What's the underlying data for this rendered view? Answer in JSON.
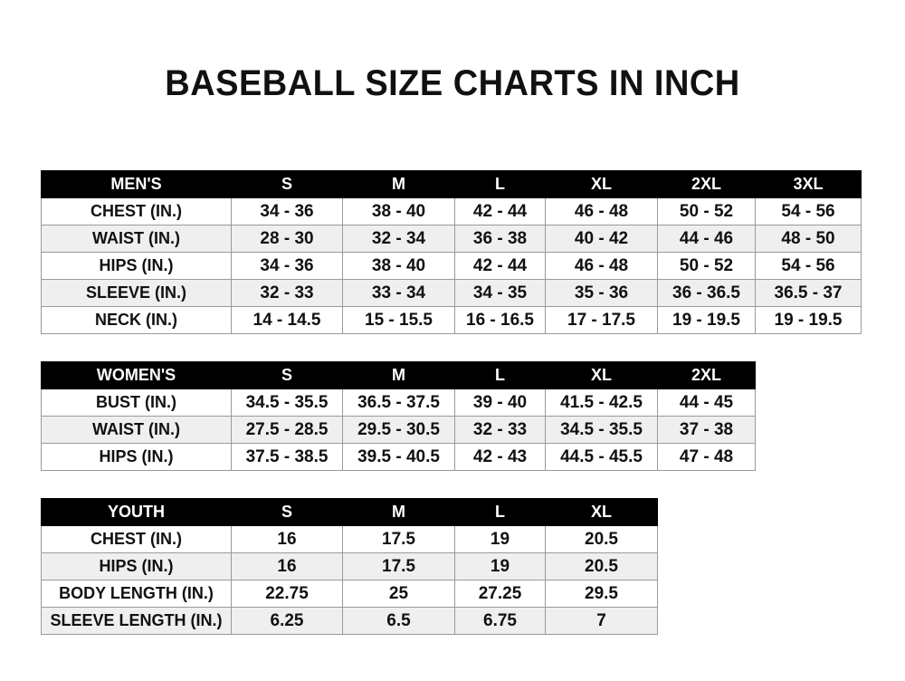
{
  "title": "BASEBALL SIZE CHARTS IN INCH",
  "tables": [
    {
      "headers": [
        "MEN'S",
        "S",
        "M",
        "L",
        "XL",
        "2XL",
        "3XL"
      ],
      "rows": [
        [
          "CHEST (IN.)",
          "34 - 36",
          "38 - 40",
          "42 - 44",
          "46 - 48",
          "50 - 52",
          "54 - 56"
        ],
        [
          "WAIST (IN.)",
          "28 - 30",
          "32 - 34",
          "36 - 38",
          "40 - 42",
          "44 - 46",
          "48 - 50"
        ],
        [
          "HIPS (IN.)",
          "34 - 36",
          "38 - 40",
          "42 - 44",
          "46 - 48",
          "50 - 52",
          "54 - 56"
        ],
        [
          "SLEEVE (IN.)",
          "32 - 33",
          "33 - 34",
          "34 - 35",
          "35 - 36",
          "36 - 36.5",
          "36.5 - 37"
        ],
        [
          "NECK (IN.)",
          "14 - 14.5",
          "15 - 15.5",
          "16 - 16.5",
          "17 - 17.5",
          "19 - 19.5",
          "19 - 19.5"
        ]
      ]
    },
    {
      "headers": [
        "WOMEN'S",
        "S",
        "M",
        "L",
        "XL",
        "2XL"
      ],
      "rows": [
        [
          "BUST (IN.)",
          "34.5 - 35.5",
          "36.5 - 37.5",
          "39 - 40",
          "41.5 - 42.5",
          "44 - 45"
        ],
        [
          "WAIST (IN.)",
          "27.5 - 28.5",
          "29.5 - 30.5",
          "32 - 33",
          "34.5 - 35.5",
          "37 - 38"
        ],
        [
          "HIPS (IN.)",
          "37.5 - 38.5",
          "39.5 - 40.5",
          "42 - 43",
          "44.5 - 45.5",
          "47 - 48"
        ]
      ]
    },
    {
      "headers": [
        "YOUTH",
        "S",
        "M",
        "L",
        "XL"
      ],
      "rows": [
        [
          "CHEST (IN.)",
          "16",
          "17.5",
          "19",
          "20.5"
        ],
        [
          "HIPS (IN.)",
          "16",
          "17.5",
          "19",
          "20.5"
        ],
        [
          "BODY LENGTH (IN.)",
          "22.75",
          "25",
          "27.25",
          "29.5"
        ],
        [
          "SLEEVE LENGTH (IN.)",
          "6.25",
          "6.5",
          "6.75",
          "7"
        ]
      ]
    }
  ]
}
